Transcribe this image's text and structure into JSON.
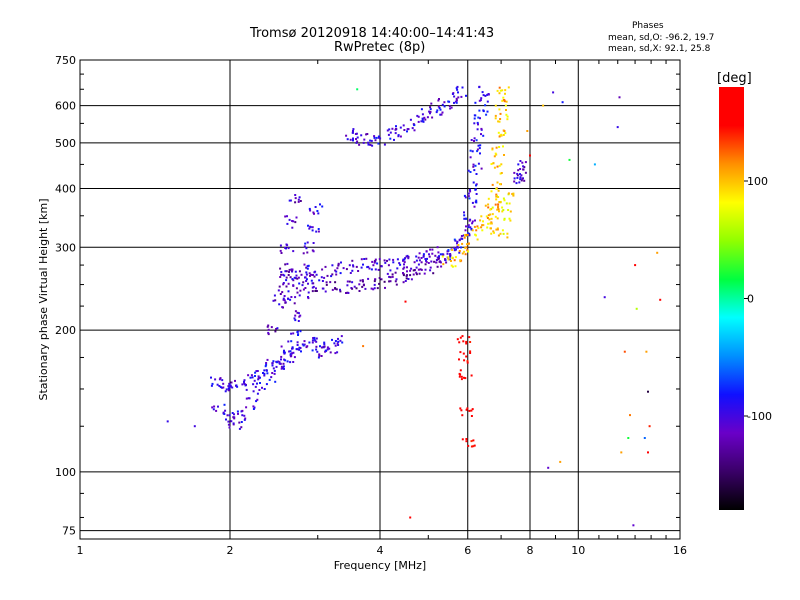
{
  "chart_data": {
    "type": "scatter",
    "title": "Tromsø 20120918 14:40:00–14:41:43",
    "subtitle": "RwPretec (8p)",
    "phase_stats": {
      "heading": "Phases",
      "o_line": "mean, sd,O: -96.2, 19.7",
      "x_line": "mean, sd,X:  92.1, 25.8"
    },
    "xlabel": "Frequency [MHz]",
    "ylabel": "Stationary phase Virtual Height [km]",
    "x_scale": "log2",
    "y_scale": "log",
    "xlim": [
      1,
      16
    ],
    "ylim": [
      72,
      750
    ],
    "x_ticks": [
      1,
      2,
      4,
      6,
      8,
      10,
      16
    ],
    "x_tick_labels": [
      "1",
      "2",
      "4",
      "6",
      "8",
      "10",
      "16"
    ],
    "y_ticks": [
      75,
      100,
      200,
      300,
      400,
      500,
      600,
      750
    ],
    "y_tick_labels": [
      "75",
      "100",
      "200",
      "300",
      "400",
      "500",
      "600",
      "750"
    ],
    "grid": true,
    "colorbar": {
      "label": "[deg]",
      "range": [
        -180,
        180
      ],
      "ticks": [
        100,
        0,
        -100
      ],
      "tick_labels": [
        "100",
        "0",
        "-100"
      ],
      "colormap": [
        "#000000",
        "#3a0068",
        "#6a00c8",
        "#1010ff",
        "#0090ff",
        "#00ffff",
        "#00ff40",
        "#90ff00",
        "#ffff00",
        "#ff9000",
        "#ff0000",
        "#ff0000"
      ]
    },
    "traces": [
      {
        "name": "",
        "phase": -100,
        "points": [
          [
            1.87,
            155
          ],
          [
            1.95,
            152
          ],
          [
            2.0,
            153
          ],
          [
            2.1,
            152
          ],
          [
            2.2,
            157
          ],
          [
            2.3,
            162
          ],
          [
            2.4,
            168
          ],
          [
            2.5,
            172
          ],
          [
            2.6,
            176
          ],
          [
            2.7,
            180
          ],
          [
            2.8,
            185
          ],
          [
            2.9,
            190
          ],
          [
            3.0,
            185
          ],
          [
            3.1,
            180
          ],
          [
            3.2,
            184
          ],
          [
            3.3,
            190
          ]
        ]
      },
      {
        "name": "",
        "phase": -100,
        "points": [
          [
            1.9,
            135
          ],
          [
            2.0,
            130
          ],
          [
            2.05,
            127
          ],
          [
            2.1,
            132
          ],
          [
            2.2,
            140
          ],
          [
            2.3,
            150
          ],
          [
            2.4,
            160
          ],
          [
            2.5,
            170
          ],
          [
            2.6,
            180
          ],
          [
            2.7,
            195
          ],
          [
            2.75,
            215
          ],
          [
            2.8,
            240
          ],
          [
            2.85,
            270
          ],
          [
            2.9,
            300
          ],
          [
            2.95,
            330
          ],
          [
            2.98,
            360
          ]
        ]
      },
      {
        "name": "",
        "phase": -110,
        "points": [
          [
            2.45,
            200
          ],
          [
            2.5,
            230
          ],
          [
            2.55,
            260
          ],
          [
            2.6,
            300
          ],
          [
            2.65,
            340
          ],
          [
            2.7,
            380
          ],
          [
            2.6,
            270
          ],
          [
            2.55,
            245
          ],
          [
            2.65,
            230
          ],
          [
            2.7,
            260
          ]
        ]
      },
      {
        "name": "",
        "phase": -105,
        "points": [
          [
            2.75,
            255
          ],
          [
            2.9,
            258
          ],
          [
            3.0,
            262
          ],
          [
            3.2,
            268
          ],
          [
            3.4,
            272
          ],
          [
            3.6,
            275
          ],
          [
            3.8,
            276
          ],
          [
            4.0,
            275
          ],
          [
            4.2,
            276
          ],
          [
            4.4,
            278
          ],
          [
            4.6,
            280
          ],
          [
            4.8,
            283
          ],
          [
            5.0,
            287
          ],
          [
            5.2,
            292
          ]
        ]
      },
      {
        "name": "",
        "phase": -120,
        "points": [
          [
            3.0,
            248
          ],
          [
            3.2,
            247
          ],
          [
            3.4,
            247
          ],
          [
            3.6,
            248
          ],
          [
            3.8,
            250
          ],
          [
            4.0,
            253
          ],
          [
            4.2,
            256
          ],
          [
            4.4,
            260
          ],
          [
            4.6,
            264
          ],
          [
            4.8,
            268
          ],
          [
            5.0,
            272
          ],
          [
            5.2,
            278
          ],
          [
            5.4,
            283
          ]
        ]
      },
      {
        "name": "",
        "phase": -95,
        "points": [
          [
            5.4,
            290
          ],
          [
            5.6,
            297
          ],
          [
            5.8,
            305
          ],
          [
            5.9,
            315
          ],
          [
            6.0,
            330
          ],
          [
            6.05,
            350
          ],
          [
            6.1,
            375
          ],
          [
            6.15,
            400
          ],
          [
            6.2,
            440
          ],
          [
            6.25,
            480
          ],
          [
            6.3,
            520
          ],
          [
            6.35,
            560
          ],
          [
            6.4,
            600
          ],
          [
            6.45,
            640
          ]
        ]
      },
      {
        "name": "",
        "phase": 100,
        "points": [
          [
            5.5,
            280
          ],
          [
            5.7,
            288
          ],
          [
            5.9,
            298
          ],
          [
            6.1,
            310
          ],
          [
            6.3,
            325
          ],
          [
            6.5,
            345
          ],
          [
            6.7,
            370
          ],
          [
            6.8,
            400
          ],
          [
            6.85,
            440
          ],
          [
            6.9,
            480
          ],
          [
            6.95,
            520
          ],
          [
            7.0,
            560
          ],
          [
            7.0,
            600
          ],
          [
            7.05,
            640
          ]
        ]
      },
      {
        "name": "",
        "phase": 90,
        "points": [
          [
            6.6,
            330
          ],
          [
            6.8,
            355
          ],
          [
            7.0,
            375
          ],
          [
            7.2,
            380
          ],
          [
            7.1,
            350
          ],
          [
            7.0,
            320
          ]
        ]
      },
      {
        "name": "",
        "phase": -100,
        "points": [
          [
            3.5,
            520
          ],
          [
            3.6,
            510
          ],
          [
            3.8,
            508
          ],
          [
            4.0,
            510
          ],
          [
            4.2,
            520
          ],
          [
            4.4,
            530
          ],
          [
            4.6,
            545
          ],
          [
            4.8,
            560
          ],
          [
            5.0,
            575
          ],
          [
            5.2,
            590
          ],
          [
            5.4,
            605
          ],
          [
            5.6,
            620
          ],
          [
            5.8,
            640
          ]
        ]
      },
      {
        "name": "",
        "phase": -110,
        "points": [
          [
            7.6,
            420
          ],
          [
            7.7,
            430
          ],
          [
            7.8,
            445
          ]
        ]
      },
      {
        "name": "",
        "phase": 160,
        "points": [
          [
            5.9,
            190
          ],
          [
            5.92,
            175
          ],
          [
            5.95,
            160
          ],
          [
            5.98,
            135
          ],
          [
            6.02,
            115
          ]
        ]
      }
    ],
    "scattered_points": [
      {
        "x": 1.5,
        "y": 128,
        "phase": -95
      },
      {
        "x": 1.7,
        "y": 125,
        "phase": -100
      },
      {
        "x": 3.6,
        "y": 650,
        "phase": 10
      },
      {
        "x": 4.6,
        "y": 80,
        "phase": 170
      },
      {
        "x": 3.7,
        "y": 185,
        "phase": 120
      },
      {
        "x": 4.5,
        "y": 230,
        "phase": 150
      },
      {
        "x": 8.7,
        "y": 102,
        "phase": -110
      },
      {
        "x": 9.2,
        "y": 105,
        "phase": 110
      },
      {
        "x": 8.9,
        "y": 640,
        "phase": -100
      },
      {
        "x": 9.3,
        "y": 610,
        "phase": -80
      },
      {
        "x": 12.1,
        "y": 625,
        "phase": -120
      },
      {
        "x": 12.0,
        "y": 540,
        "phase": -95
      },
      {
        "x": 9.6,
        "y": 460,
        "phase": 20
      },
      {
        "x": 10.8,
        "y": 450,
        "phase": -40
      },
      {
        "x": 11.3,
        "y": 235,
        "phase": -100
      },
      {
        "x": 13.0,
        "y": 275,
        "phase": 150
      },
      {
        "x": 13.1,
        "y": 222,
        "phase": 60
      },
      {
        "x": 14.4,
        "y": 292,
        "phase": 110
      },
      {
        "x": 14.6,
        "y": 232,
        "phase": 165
      },
      {
        "x": 12.4,
        "y": 180,
        "phase": 130
      },
      {
        "x": 13.7,
        "y": 180,
        "phase": 110
      },
      {
        "x": 13.8,
        "y": 148,
        "phase": -160
      },
      {
        "x": 12.7,
        "y": 132,
        "phase": 120
      },
      {
        "x": 13.9,
        "y": 125,
        "phase": 140
      },
      {
        "x": 12.6,
        "y": 118,
        "phase": 20
      },
      {
        "x": 13.6,
        "y": 118,
        "phase": -60
      },
      {
        "x": 12.2,
        "y": 110,
        "phase": 110
      },
      {
        "x": 13.8,
        "y": 110,
        "phase": 170
      },
      {
        "x": 12.9,
        "y": 77,
        "phase": -110
      },
      {
        "x": 8.0,
        "y": 470,
        "phase": 170
      },
      {
        "x": 7.9,
        "y": 530,
        "phase": 110
      },
      {
        "x": 8.5,
        "y": 600,
        "phase": 100
      }
    ]
  }
}
